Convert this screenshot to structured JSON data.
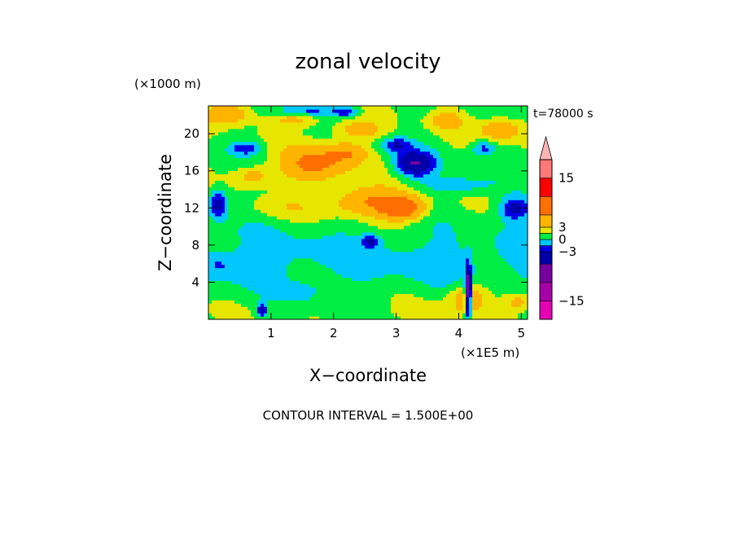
{
  "chart_data": {
    "type": "heatmap",
    "title": "zonal velocity",
    "xlabel": "X−coordinate",
    "ylabel": "Z−coordinate",
    "x_unit": "(×1E5 m)",
    "z_unit": "(×1000 m)",
    "time_label": "t=78000 s",
    "footer": "CONTOUR INTERVAL = 1.500E+00",
    "xlim": [
      0,
      5.1
    ],
    "ylim": [
      0,
      23
    ],
    "x_ticks": [
      1,
      2,
      3,
      4,
      5
    ],
    "x_tick_labels": [
      "1",
      "2",
      "3",
      "4",
      "5"
    ],
    "y_ticks": [
      4,
      8,
      12,
      16,
      20
    ],
    "y_tick_labels": [
      "4",
      "8",
      "12",
      "16",
      "20"
    ],
    "grid": false,
    "colorbar": {
      "tick_values": [
        15,
        3,
        0,
        -3,
        -15
      ],
      "tick_labels": [
        "15",
        "3",
        "0",
        "−3",
        "−15"
      ],
      "levels": [
        -19.5,
        -15,
        -10.5,
        -6,
        -3,
        -1.5,
        0,
        1.5,
        3,
        6,
        10.5,
        15,
        19.5
      ],
      "colors": [
        "#e600b4",
        "#a800a8",
        "#7800a0",
        "#0000a8",
        "#0000e6",
        "#00c8ff",
        "#00ee44",
        "#e6e600",
        "#ffb400",
        "#ff6e00",
        "#ff0000",
        "#ff7878",
        "#ffb4b4"
      ],
      "extend_max": true
    },
    "blobs": [
      {
        "x": 0.3,
        "z": 22.2,
        "rx": 0.35,
        "rz": 1.0,
        "v": 5
      },
      {
        "x": 1.4,
        "z": 21.8,
        "rx": 0.4,
        "rz": 1.0,
        "v": 3
      },
      {
        "x": 1.7,
        "z": 16.8,
        "rx": 0.5,
        "rz": 1.8,
        "v": 6
      },
      {
        "x": 2.2,
        "z": 18.0,
        "rx": 0.3,
        "rz": 1.0,
        "v": 4
      },
      {
        "x": 2.6,
        "z": 12.8,
        "rx": 0.6,
        "rz": 1.5,
        "v": 5
      },
      {
        "x": 3.1,
        "z": 12.0,
        "rx": 0.35,
        "rz": 1.2,
        "v": 7
      },
      {
        "x": 0.7,
        "z": 15.5,
        "rx": 0.3,
        "rz": 1.0,
        "v": 3
      },
      {
        "x": 4.7,
        "z": 20.5,
        "rx": 0.35,
        "rz": 1.2,
        "v": 4
      },
      {
        "x": 3.8,
        "z": 21.5,
        "rx": 0.25,
        "rz": 1.0,
        "v": 3
      },
      {
        "x": 1.5,
        "z": 22.5,
        "rx": 0.5,
        "rz": 0.6,
        "v": -4
      },
      {
        "x": 2.2,
        "z": 22.4,
        "rx": 0.2,
        "rz": 0.5,
        "v": -4
      },
      {
        "x": 3.3,
        "z": 16.8,
        "rx": 0.3,
        "rz": 1.3,
        "v": -7
      },
      {
        "x": 3.0,
        "z": 18.8,
        "rx": 0.25,
        "rz": 0.8,
        "v": -4
      },
      {
        "x": 0.6,
        "z": 18.5,
        "rx": 0.25,
        "rz": 0.7,
        "v": -4
      },
      {
        "x": 0.15,
        "z": 12.5,
        "rx": 0.15,
        "rz": 1.5,
        "v": -5
      },
      {
        "x": 4.9,
        "z": 12.0,
        "rx": 0.25,
        "rz": 1.2,
        "v": -5
      },
      {
        "x": 4.4,
        "z": 18.5,
        "rx": 0.2,
        "rz": 0.8,
        "v": -3.5
      },
      {
        "x": 2.6,
        "z": 8.5,
        "rx": 0.15,
        "rz": 0.6,
        "v": -4
      },
      {
        "x": 0.85,
        "z": 1.0,
        "rx": 0.08,
        "rz": 0.7,
        "v": -5
      },
      {
        "x": 4.15,
        "z": 3.0,
        "rx": 0.05,
        "rz": 2.5,
        "v": -12
      },
      {
        "x": 4.15,
        "z": 2.5,
        "rx": 0.3,
        "rz": 1.5,
        "v": 4
      },
      {
        "x": 4.95,
        "z": 2.0,
        "rx": 0.25,
        "rz": 1.0,
        "v": 3
      },
      {
        "x": 0.2,
        "z": 6.0,
        "rx": 0.3,
        "rz": 1.3,
        "v": -1.5
      },
      {
        "x": 1.5,
        "z": 3.0,
        "rx": 0.3,
        "rz": 1.0,
        "v": -1.5
      },
      {
        "x": 1.2,
        "z": 12.0,
        "rx": 0.6,
        "rz": 1.2,
        "v": 1.2
      },
      {
        "x": 3.6,
        "z": 1.0,
        "rx": 0.6,
        "rz": 1.0,
        "v": 1.0
      },
      {
        "x": 4.0,
        "z": 14.5,
        "rx": 0.6,
        "rz": 1.0,
        "v": -2.5
      },
      {
        "x": 2.4,
        "z": 20.5,
        "rx": 0.4,
        "rz": 1.0,
        "v": 3
      }
    ]
  }
}
